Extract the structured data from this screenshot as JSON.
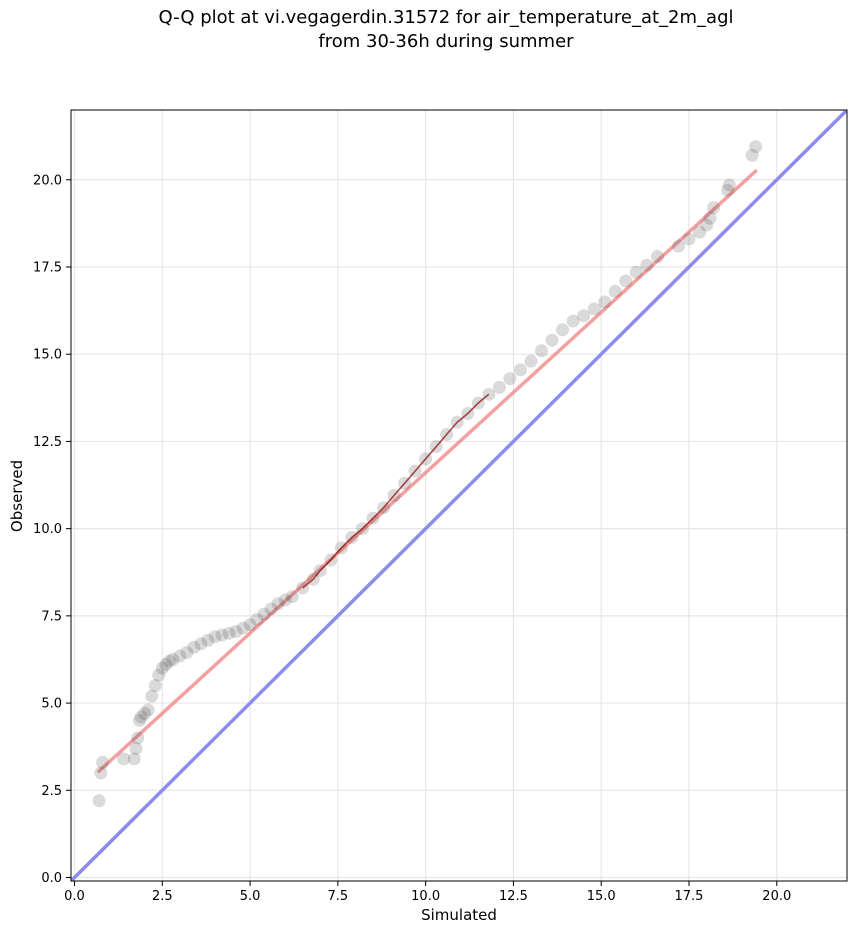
{
  "chart_data": {
    "type": "scatter",
    "title": "Q-Q plot at vi.vegagerdin.31572 for air_temperature_at_2m_agl\nfrom 30-36h during summer",
    "xlabel": "Simulated",
    "ylabel": "Observed",
    "xlim": [
      -0.1,
      22
    ],
    "ylim": [
      -0.1,
      22
    ],
    "xticks": [
      "0.0",
      "2.5",
      "5.0",
      "7.5",
      "10.0",
      "12.5",
      "15.0",
      "17.5",
      "20.0"
    ],
    "yticks": [
      "0.0",
      "2.5",
      "5.0",
      "7.5",
      "10.0",
      "12.5",
      "15.0",
      "17.5",
      "20.0"
    ],
    "grid": true,
    "colors": {
      "points": "#333333",
      "fit_line": "#f08080",
      "identity_line": "#8c8cf0",
      "quantile_trace": "#8b0000"
    },
    "series": [
      {
        "kind": "points",
        "x": [
          0.7,
          0.75,
          0.8,
          1.4,
          1.7,
          1.75,
          1.8,
          1.85,
          1.9,
          2.0,
          2.1,
          2.2,
          2.3,
          2.4,
          2.5,
          2.6,
          2.7,
          2.8,
          3.0,
          3.2,
          3.4,
          3.6,
          3.8,
          4.0,
          4.2,
          4.4,
          4.6,
          4.8,
          5.0,
          5.2,
          5.4,
          5.6,
          5.8,
          6.0,
          6.2,
          6.5,
          6.8,
          7.0,
          7.3,
          7.6,
          7.9,
          8.2,
          8.5,
          8.8,
          9.1,
          9.4,
          9.7,
          10.0,
          10.3,
          10.6,
          10.9,
          11.2,
          11.5,
          11.8,
          12.1,
          12.4,
          12.7,
          13.0,
          13.3,
          13.6,
          13.9,
          14.2,
          14.5,
          14.8,
          15.1,
          15.4,
          15.7,
          16.0,
          16.3,
          16.6,
          17.2,
          17.5,
          17.8,
          18.0,
          18.1,
          18.2,
          18.6,
          18.65,
          19.3,
          19.4
        ],
        "y": [
          2.2,
          3.0,
          3.3,
          3.4,
          3.4,
          3.7,
          4.0,
          4.5,
          4.6,
          4.7,
          4.8,
          5.2,
          5.5,
          5.8,
          6.0,
          6.1,
          6.2,
          6.25,
          6.35,
          6.45,
          6.6,
          6.7,
          6.8,
          6.9,
          6.95,
          7.0,
          7.05,
          7.15,
          7.25,
          7.4,
          7.55,
          7.7,
          7.85,
          7.95,
          8.05,
          8.3,
          8.55,
          8.8,
          9.1,
          9.45,
          9.75,
          10.0,
          10.3,
          10.6,
          10.95,
          11.3,
          11.65,
          12.0,
          12.35,
          12.7,
          13.05,
          13.3,
          13.6,
          13.85,
          14.05,
          14.3,
          14.55,
          14.8,
          15.1,
          15.4,
          15.7,
          15.95,
          16.1,
          16.3,
          16.5,
          16.8,
          17.1,
          17.35,
          17.55,
          17.8,
          18.1,
          18.3,
          18.5,
          18.7,
          18.9,
          19.2,
          19.7,
          19.85,
          20.7,
          20.95
        ]
      },
      {
        "kind": "fit_line",
        "x": [
          0.7,
          19.4
        ],
        "y": [
          3.05,
          20.25
        ]
      },
      {
        "kind": "identity_line",
        "x": [
          -0.1,
          22
        ],
        "y": [
          -0.1,
          22
        ]
      }
    ]
  }
}
